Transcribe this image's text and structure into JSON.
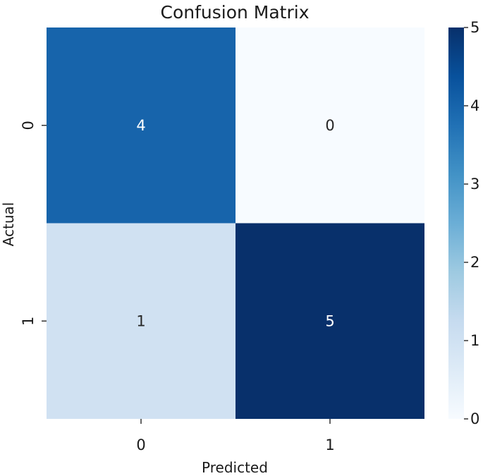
{
  "chart_data": {
    "type": "heatmap",
    "title": "Confusion Matrix",
    "xlabel": "Predicted",
    "ylabel": "Actual",
    "x_categories": [
      "0",
      "1"
    ],
    "y_categories": [
      "0",
      "1"
    ],
    "values": [
      [
        4,
        0
      ],
      [
        1,
        5
      ]
    ],
    "colormap": "Blues",
    "vmin": 0,
    "vmax": 5,
    "colorbar_ticks": [
      "0",
      "1",
      "2",
      "3",
      "4",
      "5"
    ],
    "colors": {
      "low": "#f7fbff",
      "high": "#08306b",
      "text_light": "#ffffff",
      "text_dark": "#262626"
    }
  }
}
